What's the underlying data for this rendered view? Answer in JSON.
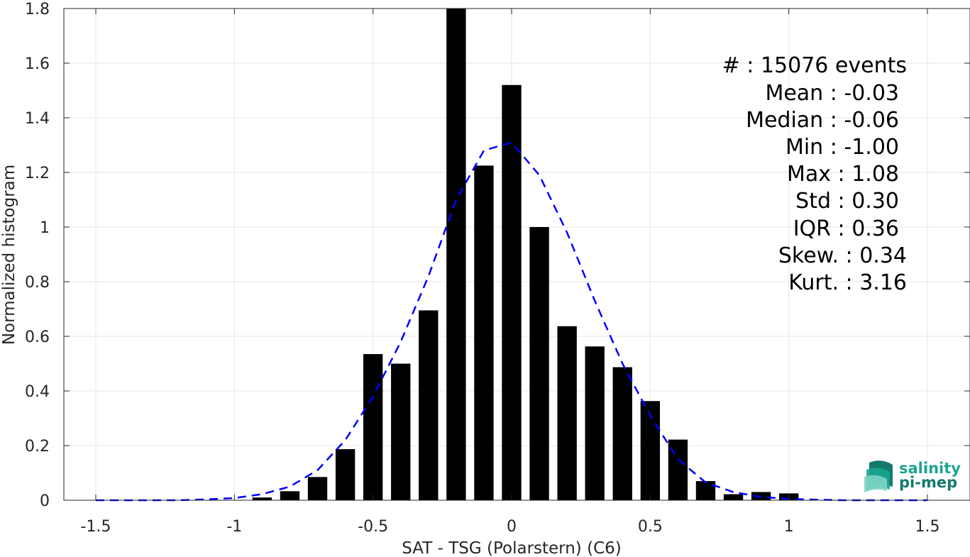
{
  "chart_data": {
    "type": "bar",
    "xlabel": "SAT - TSG (Polarstern) (C6)",
    "ylabel": "Normalized histogram",
    "xlim": [
      -1.5,
      1.5
    ],
    "ylim": [
      0,
      1.8
    ],
    "xticks": [
      -1.5,
      -1,
      -0.5,
      0,
      0.5,
      1,
      1.5
    ],
    "xtick_labels": [
      "-1.5",
      "-1",
      "-0.5",
      "0",
      "0.5",
      "1",
      "1.5"
    ],
    "yticks": [
      0,
      0.2,
      0.4,
      0.6,
      0.8,
      1,
      1.2,
      1.4,
      1.6,
      1.8
    ],
    "ytick_labels": [
      "0",
      "0.2",
      "0.4",
      "0.6",
      "0.8",
      "1",
      "1.2",
      "1.4",
      "1.6",
      "1.8"
    ],
    "grid": true,
    "bar_color": "#000000",
    "fit_color": "#0000ff",
    "bar_width": 0.07,
    "bars": {
      "x": [
        -0.9,
        -0.8,
        -0.7,
        -0.6,
        -0.5,
        -0.4,
        -0.3,
        -0.2,
        -0.1,
        0.0,
        0.1,
        0.2,
        0.3,
        0.4,
        0.5,
        0.6,
        0.7,
        0.8,
        0.9,
        1.0
      ],
      "values": [
        0.01,
        0.033,
        0.085,
        0.187,
        0.535,
        0.5,
        0.695,
        1.8,
        1.225,
        1.52,
        1.0,
        0.637,
        0.563,
        0.487,
        0.363,
        0.222,
        0.07,
        0.022,
        0.03,
        0.025
      ]
    },
    "fit_curve": {
      "style": "dashed",
      "x": [
        -1.5,
        -1.4,
        -1.3,
        -1.2,
        -1.1,
        -1.0,
        -0.9,
        -0.8,
        -0.7,
        -0.6,
        -0.5,
        -0.4,
        -0.3,
        -0.2,
        -0.1,
        0.0,
        0.1,
        0.2,
        0.3,
        0.4,
        0.5,
        0.6,
        0.7,
        0.8,
        0.9,
        1.0,
        1.1,
        1.2,
        1.3,
        1.4,
        1.5
      ],
      "y": [
        0.0,
        0.0,
        0.0,
        0.0,
        0.003,
        0.008,
        0.022,
        0.05,
        0.11,
        0.22,
        0.38,
        0.58,
        0.82,
        1.1,
        1.28,
        1.31,
        1.19,
        0.98,
        0.73,
        0.5,
        0.31,
        0.15,
        0.065,
        0.03,
        0.012,
        0.005,
        0.002,
        0.0,
        0.0,
        0.0,
        0.0
      ]
    }
  },
  "stats": {
    "count_line": "#  : 15076 events",
    "mean_line": "Mean : -0.03",
    "median_line": "Median : -0.06",
    "min_line": "Min : -1.00",
    "max_line": "Max : 1.08",
    "std_line": "Std : 0.30",
    "iqr_line": "IQR : 0.36",
    "skew_line": "Skew. : 0.34",
    "kurt_line": "Kurt. : 3.16"
  },
  "logo": {
    "line1": "salinity",
    "line2": "pi-mep",
    "color_primary": "#1aa58f",
    "color_secondary": "#137a6b"
  }
}
